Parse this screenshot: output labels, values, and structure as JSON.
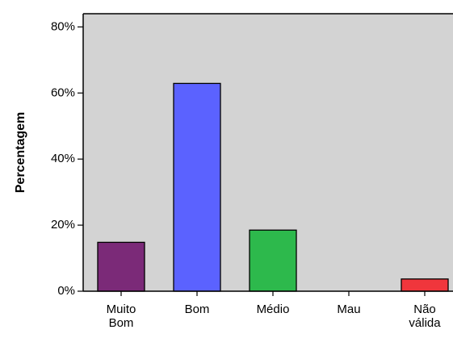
{
  "chart_data": {
    "type": "bar",
    "title": "",
    "xlabel": "",
    "ylabel": "Percentagem",
    "ylim": [
      0,
      84
    ],
    "yticks": [
      "0%",
      "20%",
      "40%",
      "60%",
      "80%"
    ],
    "ytick_values": [
      0,
      20,
      40,
      60,
      80
    ],
    "categories": [
      {
        "line1": "Muito",
        "line2": "Bom"
      },
      {
        "line1": "Bom",
        "line2": ""
      },
      {
        "line1": "Médio",
        "line2": ""
      },
      {
        "line1": "Mau",
        "line2": ""
      },
      {
        "line1": "Não",
        "line2": "válida"
      }
    ],
    "values": [
      14.8,
      62.9,
      18.5,
      0,
      3.7
    ],
    "bar_colors": [
      "#7b2a78",
      "#5b62ff",
      "#2db94c",
      "#9a9a9a",
      "#f0363c"
    ],
    "plot_background": "#d3d3d3",
    "grid": false,
    "legend": "none"
  }
}
